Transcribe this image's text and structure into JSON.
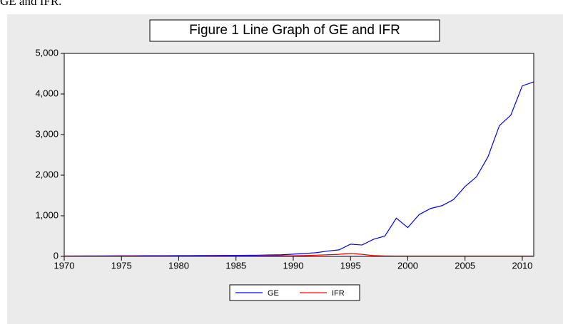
{
  "caption": "GE and IFR.",
  "chart_data": {
    "type": "line",
    "title": "Figure 1 Line Graph of GE and IFR",
    "x": [
      1970,
      1971,
      1972,
      1973,
      1974,
      1975,
      1976,
      1977,
      1978,
      1979,
      1980,
      1981,
      1982,
      1983,
      1984,
      1985,
      1986,
      1987,
      1988,
      1989,
      1990,
      1991,
      1992,
      1993,
      1994,
      1995,
      1996,
      1997,
      1998,
      1999,
      2000,
      2001,
      2002,
      2003,
      2004,
      2005,
      2006,
      2007,
      2008,
      2009,
      2010,
      2011
    ],
    "series": [
      {
        "name": "GE",
        "color": "#0000ff",
        "values": [
          10,
          10,
          11,
          12,
          13,
          15,
          16,
          17,
          18,
          19,
          20,
          21,
          22,
          23,
          24,
          25,
          26,
          30,
          35,
          40,
          55,
          70,
          90,
          130,
          160,
          300,
          280,
          420,
          500,
          940,
          710,
          1030,
          1180,
          1250,
          1400,
          1720,
          1960,
          2450,
          3220,
          3480,
          4200,
          4300
        ]
      },
      {
        "name": "IFR",
        "color": "#ff0000",
        "values": [
          10,
          10,
          10,
          10,
          10,
          12,
          12,
          10,
          10,
          10,
          10,
          10,
          10,
          12,
          12,
          10,
          10,
          12,
          14,
          15,
          15,
          20,
          30,
          40,
          50,
          75,
          50,
          20,
          12,
          10,
          10,
          10,
          10,
          10,
          10,
          10,
          10,
          10,
          10,
          10,
          10,
          10
        ]
      }
    ],
    "xlim": [
      1970,
      2011
    ],
    "xticks": [
      1970,
      1975,
      1980,
      1985,
      1990,
      1995,
      2000,
      2005,
      2010
    ],
    "ylim": [
      0,
      5000
    ],
    "yticks": [
      0,
      {
        "value": 1000,
        "label": "1,000"
      },
      {
        "value": 2000,
        "label": "2,000"
      },
      {
        "value": 3000,
        "label": "3,000"
      },
      {
        "value": 4000,
        "label": "4,000"
      },
      {
        "value": 5000,
        "label": "5,000"
      }
    ],
    "grid": false,
    "legend": "bottom"
  }
}
